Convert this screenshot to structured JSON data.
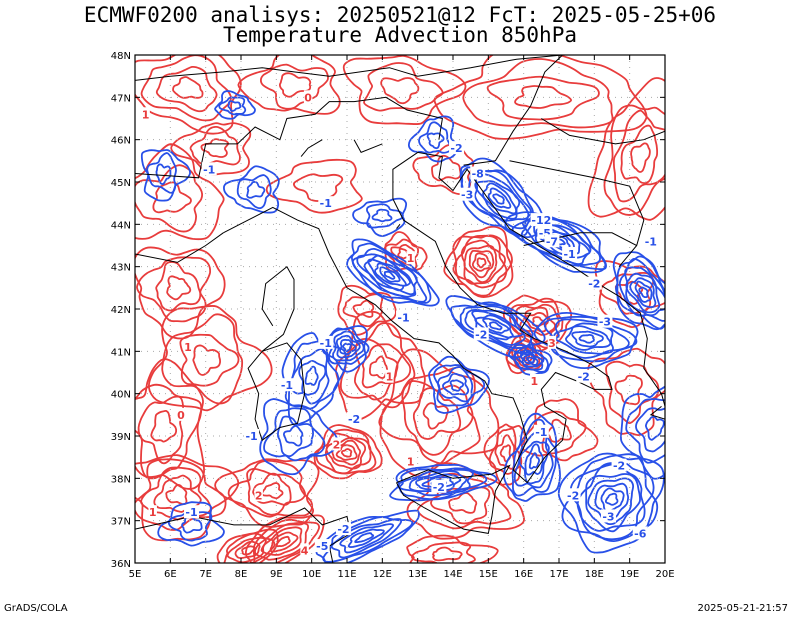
{
  "header": {
    "title_line1": "ECMWF0200 analisys: 20250521@12 FcT: 2025-05-25+06",
    "title_line2": "Temperature Advection 850hPa"
  },
  "footer": {
    "left": "GrADS/COLA",
    "right": "2025-05-21-21:57"
  },
  "map": {
    "lon_ticks": [
      "5E",
      "6E",
      "7E",
      "8E",
      "9E",
      "10E",
      "11E",
      "12E",
      "13E",
      "14E",
      "15E",
      "16E",
      "17E",
      "18E",
      "19E",
      "20E"
    ],
    "lat_ticks": [
      "48N",
      "47N",
      "46N",
      "45N",
      "44N",
      "43N",
      "42N",
      "41N",
      "40N",
      "39N",
      "38N",
      "37N",
      "36N"
    ],
    "lon_range": [
      5,
      20
    ],
    "lat_range": [
      36,
      48
    ],
    "colors": {
      "warm_advection": "#e83c3c",
      "cold_advection": "#2850e8",
      "coastline": "#000000",
      "grid": "#aaaaaa"
    },
    "contour_labels": [
      {
        "text": "1",
        "lon": 5.3,
        "lat": 46.6,
        "color": "warm"
      },
      {
        "text": "0",
        "lon": 9.9,
        "lat": 47.0,
        "color": "warm"
      },
      {
        "text": "-1",
        "lon": 10.4,
        "lat": 44.5,
        "color": "cold"
      },
      {
        "text": "-2",
        "lon": 14.1,
        "lat": 45.8,
        "color": "cold"
      },
      {
        "text": "-3",
        "lon": 14.4,
        "lat": 44.7,
        "color": "cold"
      },
      {
        "text": "-8",
        "lon": 14.7,
        "lat": 45.2,
        "color": "cold"
      },
      {
        "text": "-12",
        "lon": 16.5,
        "lat": 44.1,
        "color": "cold"
      },
      {
        "text": "-5",
        "lon": 16.6,
        "lat": 43.8,
        "color": "cold"
      },
      {
        "text": "-7",
        "lon": 16.8,
        "lat": 43.6,
        "color": "cold"
      },
      {
        "text": "1",
        "lon": 12.8,
        "lat": 43.2,
        "color": "warm"
      },
      {
        "text": "-1",
        "lon": 7.1,
        "lat": 45.3,
        "color": "cold"
      },
      {
        "text": "-1",
        "lon": 17.3,
        "lat": 43.3,
        "color": "cold"
      },
      {
        "text": "-2",
        "lon": 18.0,
        "lat": 42.6,
        "color": "cold"
      },
      {
        "text": "-1",
        "lon": 19.6,
        "lat": 43.6,
        "color": "cold"
      },
      {
        "text": "-3",
        "lon": 18.3,
        "lat": 41.7,
        "color": "cold"
      },
      {
        "text": "1",
        "lon": 6.5,
        "lat": 41.1,
        "color": "warm"
      },
      {
        "text": "-1",
        "lon": 10.4,
        "lat": 41.2,
        "color": "cold"
      },
      {
        "text": "-1",
        "lon": 12.6,
        "lat": 41.8,
        "color": "cold"
      },
      {
        "text": "-2",
        "lon": 14.8,
        "lat": 41.4,
        "color": "cold"
      },
      {
        "text": "3",
        "lon": 16.8,
        "lat": 41.2,
        "color": "warm"
      },
      {
        "text": "-1",
        "lon": 9.3,
        "lat": 40.2,
        "color": "cold"
      },
      {
        "text": "1",
        "lon": 12.2,
        "lat": 40.4,
        "color": "warm"
      },
      {
        "text": "-2",
        "lon": 11.2,
        "lat": 39.4,
        "color": "cold"
      },
      {
        "text": "1",
        "lon": 16.3,
        "lat": 40.3,
        "color": "warm"
      },
      {
        "text": "-2",
        "lon": 17.7,
        "lat": 40.4,
        "color": "cold"
      },
      {
        "text": "0",
        "lon": 6.3,
        "lat": 39.5,
        "color": "warm"
      },
      {
        "text": "-1",
        "lon": 8.3,
        "lat": 39.0,
        "color": "cold"
      },
      {
        "text": "2",
        "lon": 10.7,
        "lat": 38.8,
        "color": "warm"
      },
      {
        "text": "-1",
        "lon": 16.5,
        "lat": 39.1,
        "color": "cold"
      },
      {
        "text": "-2",
        "lon": 18.7,
        "lat": 38.3,
        "color": "cold"
      },
      {
        "text": "1",
        "lon": 12.8,
        "lat": 38.4,
        "color": "warm"
      },
      {
        "text": "2",
        "lon": 8.5,
        "lat": 37.6,
        "color": "warm"
      },
      {
        "text": "-2",
        "lon": 13.6,
        "lat": 37.8,
        "color": "cold"
      },
      {
        "text": "-2",
        "lon": 17.4,
        "lat": 37.6,
        "color": "cold"
      },
      {
        "text": "-3",
        "lon": 18.4,
        "lat": 37.1,
        "color": "cold"
      },
      {
        "text": "1",
        "lon": 5.5,
        "lat": 37.2,
        "color": "warm"
      },
      {
        "text": "-1",
        "lon": 6.6,
        "lat": 37.2,
        "color": "cold"
      },
      {
        "text": "-2",
        "lon": 10.9,
        "lat": 36.8,
        "color": "cold"
      },
      {
        "text": "-5",
        "lon": 10.3,
        "lat": 36.4,
        "color": "cold"
      },
      {
        "text": "-6",
        "lon": 19.3,
        "lat": 36.7,
        "color": "cold"
      },
      {
        "text": "4",
        "lon": 9.8,
        "lat": 36.3,
        "color": "warm"
      }
    ]
  }
}
